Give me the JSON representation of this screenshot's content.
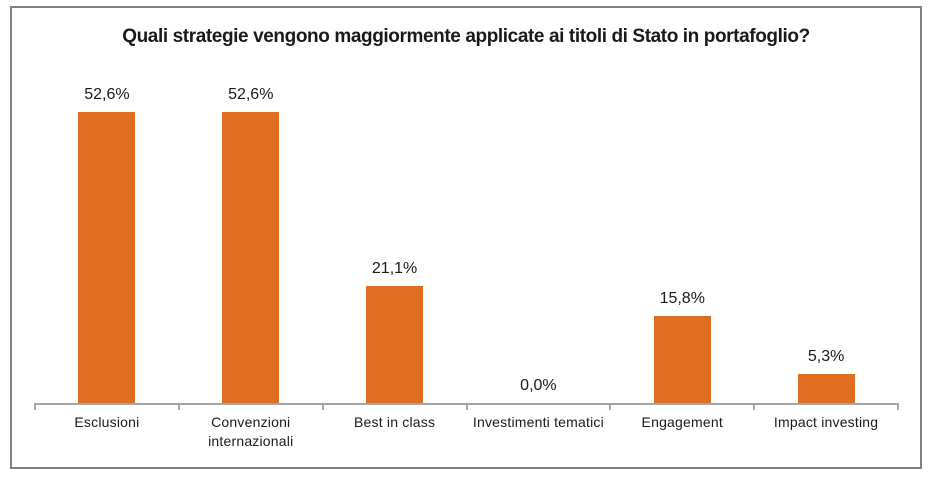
{
  "chart_data": {
    "type": "bar",
    "title": "Quali strategie vengono maggiormente applicate ai titoli di Stato in portafoglio?",
    "categories": [
      "Esclusioni",
      "Convenzioni internazionali",
      "Best in class",
      "Investimenti tematici",
      "Engagement",
      "Impact investing"
    ],
    "values": [
      52.6,
      52.6,
      21.1,
      0.0,
      15.8,
      5.3
    ],
    "value_labels": [
      "52,6%",
      "52,6%",
      "21,1%",
      "0,0%",
      "15,8%",
      "5,3%"
    ],
    "unit": "percent",
    "xlabel": "",
    "ylabel": "",
    "ylim": [
      0,
      60
    ],
    "grid": false,
    "legend_position": "none",
    "data_labels_shown": true,
    "bar_color": "#df6e21",
    "axis_color": "#a6a6a6",
    "frame_border_color": "#808080",
    "text_color": "#1a1a1a",
    "background_color": "#ffffff"
  }
}
